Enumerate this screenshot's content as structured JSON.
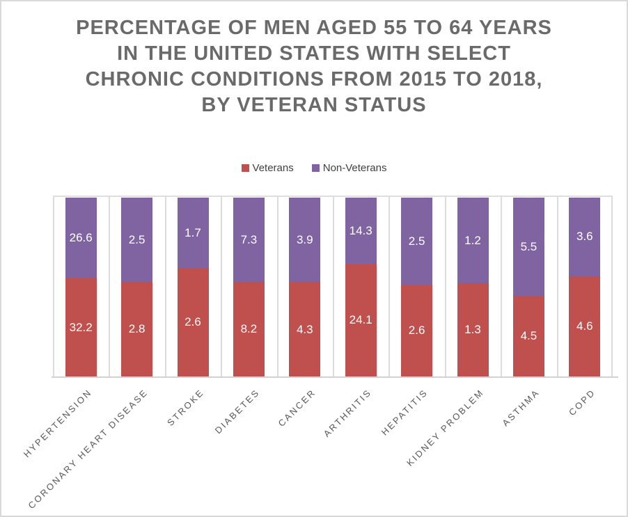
{
  "chart_data": {
    "type": "bar",
    "subtype": "100-percent-stacked-column",
    "title": "PERCENTAGE OF MEN AGED 55 TO 64 YEARS IN THE UNITED STATES WITH SELECT CHRONIC CONDITIONS FROM 2015 TO 2018, BY VETERAN STATUS",
    "title_lines": [
      "PERCENTAGE OF MEN AGED 55 TO 64 YEARS",
      "IN THE UNITED STATES WITH SELECT",
      "CHRONIC CONDITIONS FROM 2015 TO 2018,",
      "BY VETERAN STATUS"
    ],
    "categories": [
      "HYPERTENSION",
      "CORONARY HEART DISEASE",
      "STROKE",
      "DIABETES",
      "CANCER",
      "ARTHRITIS",
      "HEPATITIS",
      "KIDNEY PROBLEM",
      "ASTHMA",
      "COPD"
    ],
    "series": [
      {
        "name": "Veterans",
        "color": "#C0504D",
        "values": [
          32.2,
          2.8,
          2.6,
          8.2,
          4.3,
          24.1,
          2.6,
          1.3,
          4.5,
          4.6
        ]
      },
      {
        "name": "Non-Veterans",
        "color": "#8064A2",
        "values": [
          26.6,
          2.5,
          1.7,
          7.3,
          3.9,
          14.3,
          2.5,
          1.2,
          5.5,
          3.6
        ]
      }
    ],
    "legend_position": "top",
    "value_axis_visible": false,
    "data_labels_shown": true,
    "data_label_color": "#FFFFFF",
    "grid_color": "#DCDCDC",
    "title_color": "#6A6A6A",
    "axis_label_color": "#595959"
  }
}
